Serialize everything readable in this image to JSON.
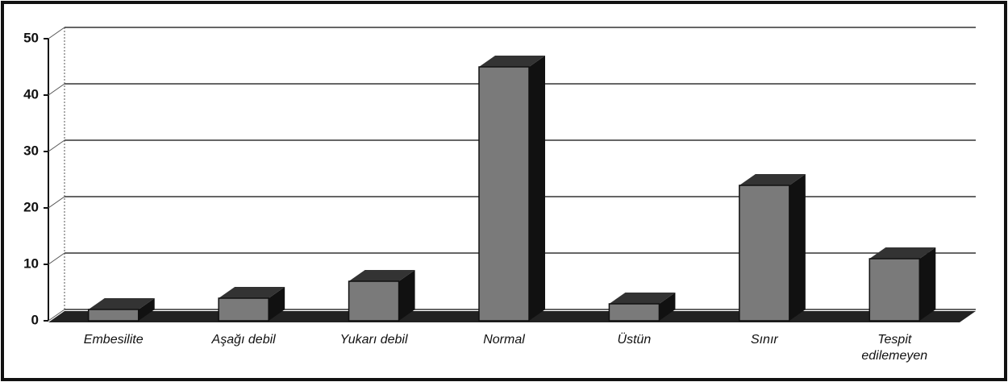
{
  "chart_data": {
    "type": "bar",
    "categories": [
      "Embesilite",
      "Aşağı debil",
      "Yukarı debil",
      "Normal",
      "Üstün",
      "Sınır",
      "Tespit edilemeyen"
    ],
    "values": [
      2,
      4,
      7,
      45,
      3,
      24,
      11
    ],
    "color": "#7a7a7a",
    "ylim": [
      0,
      50
    ],
    "yticks": [
      0,
      10,
      20,
      30,
      40,
      50
    ],
    "grid": true
  }
}
